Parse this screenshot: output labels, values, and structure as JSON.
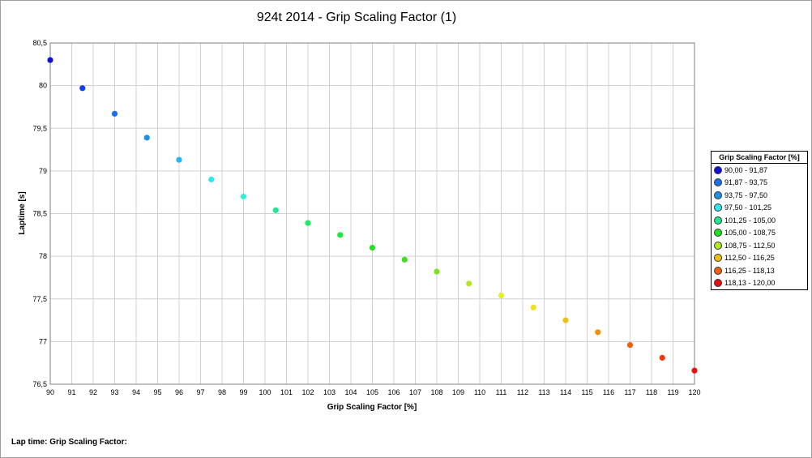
{
  "chart_data": {
    "type": "scatter",
    "title": "924t 2014 - Grip Scaling Factor (1)",
    "xlabel": "Grip Scaling Factor [%]",
    "ylabel": "Laptime [s]",
    "xlim": [
      90,
      120
    ],
    "ylim": [
      76.5,
      80.5
    ],
    "x_ticks": [
      90,
      91,
      92,
      93,
      94,
      95,
      96,
      97,
      98,
      99,
      100,
      101,
      102,
      103,
      104,
      105,
      106,
      107,
      108,
      109,
      110,
      111,
      112,
      113,
      114,
      115,
      116,
      117,
      118,
      119,
      120
    ],
    "y_ticks": [
      76.5,
      77,
      77.5,
      78,
      78.5,
      79,
      79.5,
      80,
      80.5
    ],
    "y_tick_labels": [
      "76,5",
      "77",
      "77,5",
      "78",
      "78,5",
      "79",
      "79,5",
      "80",
      "80,5"
    ],
    "grid": true,
    "legend_position": "right",
    "points": [
      {
        "x": 90,
        "y": 80.3,
        "color": "#1010d8"
      },
      {
        "x": 91.5,
        "y": 79.97,
        "color": "#1040e8"
      },
      {
        "x": 93,
        "y": 79.67,
        "color": "#1a70e8"
      },
      {
        "x": 94.5,
        "y": 79.39,
        "color": "#2090e8"
      },
      {
        "x": 96,
        "y": 79.13,
        "color": "#20b8f0"
      },
      {
        "x": 97.5,
        "y": 78.9,
        "color": "#30e8f0"
      },
      {
        "x": 99,
        "y": 78.7,
        "color": "#30f0d8"
      },
      {
        "x": 100.5,
        "y": 78.54,
        "color": "#20e890"
      },
      {
        "x": 102,
        "y": 78.39,
        "color": "#20e860"
      },
      {
        "x": 103.5,
        "y": 78.25,
        "color": "#20e840"
      },
      {
        "x": 105,
        "y": 78.1,
        "color": "#20e020"
      },
      {
        "x": 106.5,
        "y": 77.96,
        "color": "#40e020"
      },
      {
        "x": 108,
        "y": 77.82,
        "color": "#80e020"
      },
      {
        "x": 109.5,
        "y": 77.68,
        "color": "#b0e820"
      },
      {
        "x": 111,
        "y": 77.54,
        "color": "#e0f020"
      },
      {
        "x": 112.5,
        "y": 77.4,
        "color": "#f0e020"
      },
      {
        "x": 114,
        "y": 77.25,
        "color": "#f0c010"
      },
      {
        "x": 115.5,
        "y": 77.11,
        "color": "#f09010"
      },
      {
        "x": 117,
        "y": 76.96,
        "color": "#f06010"
      },
      {
        "x": 118.5,
        "y": 76.81,
        "color": "#f03810"
      },
      {
        "x": 120,
        "y": 76.66,
        "color": "#e81010"
      }
    ]
  },
  "legend": {
    "title": "Grip Scaling Factor [%]",
    "items": [
      {
        "label": "90,00 - 91,87",
        "color": "#1010d8"
      },
      {
        "label": "91,87 - 93,75",
        "color": "#1a70e8"
      },
      {
        "label": "93,75 - 97,50",
        "color": "#2090e8"
      },
      {
        "label": "97,50 - 101,25",
        "color": "#30e8f0"
      },
      {
        "label": "101,25 - 105,00",
        "color": "#20e890"
      },
      {
        "label": "105,00 - 108,75",
        "color": "#20e020"
      },
      {
        "label": "108,75 - 112,50",
        "color": "#b0e820"
      },
      {
        "label": "112,50 - 116,25",
        "color": "#f0c010"
      },
      {
        "label": "116,25 - 118,13",
        "color": "#f06010"
      },
      {
        "label": "118,13 - 120,00",
        "color": "#e81010"
      }
    ]
  },
  "footer": {
    "text": "Lap time: Grip Scaling Factor:"
  }
}
